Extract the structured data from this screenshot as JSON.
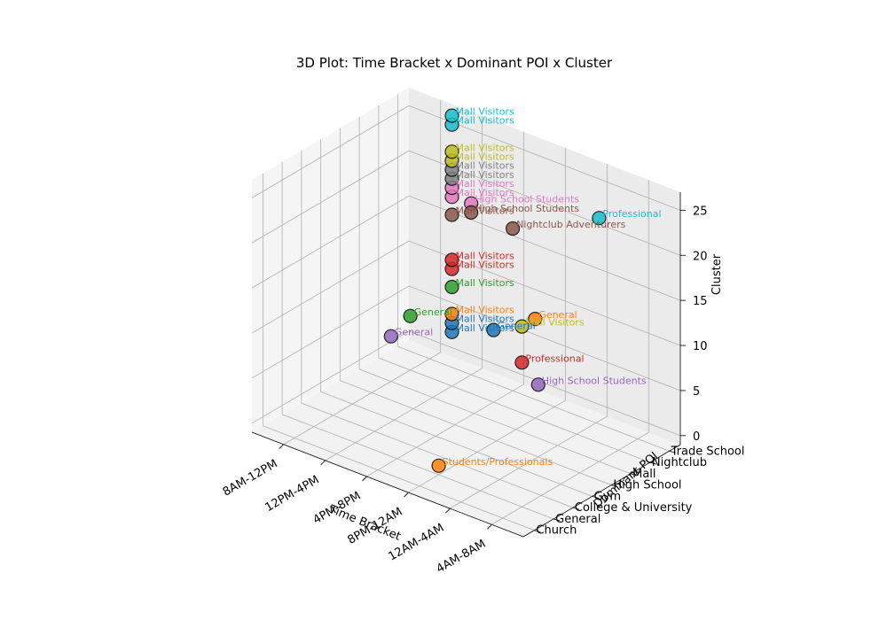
{
  "chart_data": {
    "type": "scatter",
    "projection": "3d",
    "title": "3D Plot: Time Bracket x Dominant POI x Cluster",
    "xlabel": "Time Bracket",
    "ylabel": "Dominant POI",
    "zlabel": "Cluster",
    "x_categories": [
      "8AM-12PM",
      "12PM-4PM",
      "4PM-8PM",
      "8PM-12AM",
      "12AM-4AM",
      "4AM-8AM"
    ],
    "y_categories": [
      "Church",
      "General",
      "College & University",
      "Gym",
      "High School",
      "Mall",
      "Nightclub",
      "Trade School"
    ],
    "z_ticks": [
      0,
      5,
      10,
      15,
      20,
      25
    ],
    "zlim": [
      -1,
      27
    ],
    "grid": true,
    "points": [
      {
        "x": "8AM-12PM",
        "y": "Mall",
        "z": 4,
        "label": "General",
        "color": "#9467bd"
      },
      {
        "x": "8AM-12PM",
        "y": "Nightclub",
        "z": 5,
        "label": "General",
        "color": "#2ca02c"
      },
      {
        "x": "12PM-4PM",
        "y": "Trade School",
        "z": 18,
        "label": "High School Students",
        "color": "#e377c2"
      },
      {
        "x": "12PM-4PM",
        "y": "Trade School",
        "z": 17,
        "label": "High School Students",
        "color": "#8c564b"
      },
      {
        "x": "12PM-4PM",
        "y": "Nightclub",
        "z": 5,
        "label": "Mall Visitors",
        "color": "#1f77b4"
      },
      {
        "x": "12PM-4PM",
        "y": "Nightclub",
        "z": 6,
        "label": "Mall Visitors",
        "color": "#1f77b4"
      },
      {
        "x": "12PM-4PM",
        "y": "Nightclub",
        "z": 7,
        "label": "Mall Visitors",
        "color": "#ff7f0e"
      },
      {
        "x": "12PM-4PM",
        "y": "Nightclub",
        "z": 10,
        "label": "Mall Visitors",
        "color": "#2ca02c"
      },
      {
        "x": "12PM-4PM",
        "y": "Nightclub",
        "z": 12,
        "label": "Mall Visitors",
        "color": "#d62728"
      },
      {
        "x": "12PM-4PM",
        "y": "Nightclub",
        "z": 13,
        "label": "Mall Visitors",
        "color": "#d62728"
      },
      {
        "x": "12PM-4PM",
        "y": "Nightclub",
        "z": 18,
        "label": "Mall Visitors",
        "color": "#8c564b"
      },
      {
        "x": "12PM-4PM",
        "y": "Nightclub",
        "z": 20,
        "label": "Mall Visitors",
        "color": "#e377c2"
      },
      {
        "x": "12PM-4PM",
        "y": "Nightclub",
        "z": 21,
        "label": "Mall Visitors",
        "color": "#e377c2"
      },
      {
        "x": "12PM-4PM",
        "y": "Nightclub",
        "z": 22,
        "label": "Mall Visitors",
        "color": "#7f7f7f"
      },
      {
        "x": "12PM-4PM",
        "y": "Nightclub",
        "z": 23,
        "label": "Mall Visitors",
        "color": "#7f7f7f"
      },
      {
        "x": "12PM-4PM",
        "y": "Nightclub",
        "z": 24,
        "label": "Mall Visitors",
        "color": "#bcbd22"
      },
      {
        "x": "12PM-4PM",
        "y": "Nightclub",
        "z": 25,
        "label": "Mall Visitors",
        "color": "#bcbd22"
      },
      {
        "x": "12PM-4PM",
        "y": "Nightclub",
        "z": 28,
        "label": "Mall Visitors",
        "color": "#17becf"
      },
      {
        "x": "12PM-4PM",
        "y": "Nightclub",
        "z": 29,
        "label": "Mall Visitors",
        "color": "#17becf"
      },
      {
        "x": "4PM-8PM",
        "y": "Nightclub",
        "z": 7,
        "label": "General",
        "color": "#1f77b4"
      },
      {
        "x": "4PM-8PM",
        "y": "Trade School",
        "z": 17,
        "label": "Nightclub Adventurers",
        "color": "#8c564b"
      },
      {
        "x": "8PM-12AM",
        "y": "Nightclub",
        "z": 10,
        "label": "General",
        "color": "#ff7f0e"
      },
      {
        "x": "8PM-12AM",
        "y": "General",
        "z": 0,
        "label": "Students/Professionals",
        "color": "#ff7f0e"
      },
      {
        "x": "12AM-4AM",
        "y": "High School",
        "z": 7,
        "label": "High School Students",
        "color": "#9467bd"
      },
      {
        "x": "4AM-8AM",
        "y": "General",
        "z": 15,
        "label": "Professional",
        "color": "#d62728"
      },
      {
        "x": "4AM-8AM",
        "y": "General",
        "z": 19,
        "label": "Mall Visitors",
        "color": "#bcbd22"
      },
      {
        "x": "4AM-8AM",
        "y": "Mall",
        "z": 26,
        "label": "Professional",
        "color": "#17becf"
      }
    ]
  }
}
